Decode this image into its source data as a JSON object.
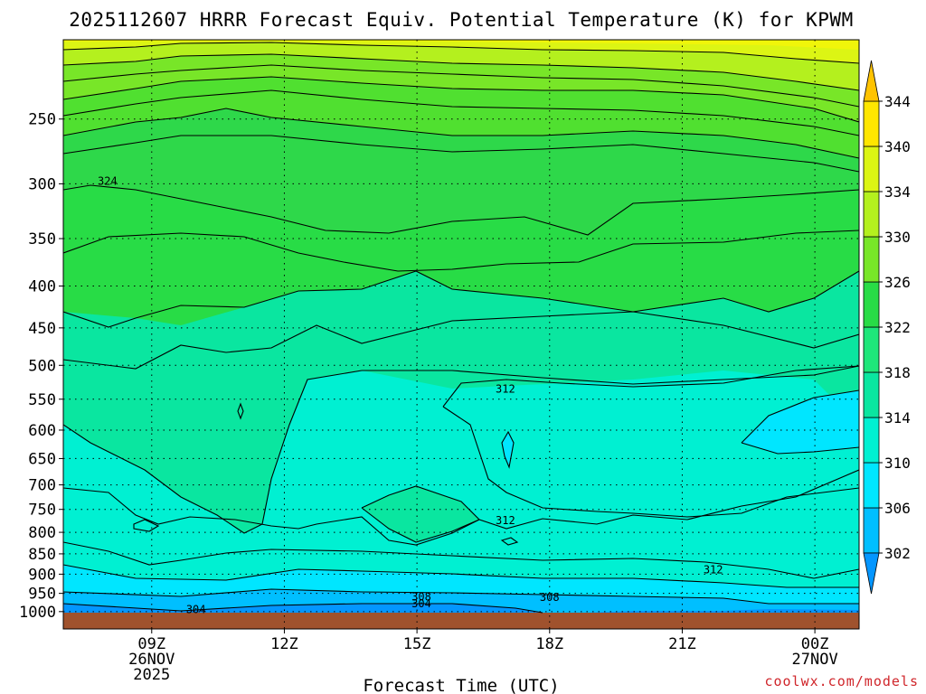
{
  "chart_data": {
    "type": "heatmap",
    "title": "2025112607 HRRR Forecast Equiv. Potential Temperature (K) for KPWM",
    "xlabel": "Forecast Time (UTC)",
    "ylabel": "",
    "credit": "coolwx.com/models",
    "x_ticks": [
      {
        "hour": 9,
        "lines": [
          "09Z",
          "26NOV",
          "2025"
        ]
      },
      {
        "hour": 12,
        "lines": [
          "12Z"
        ]
      },
      {
        "hour": 15,
        "lines": [
          "15Z"
        ]
      },
      {
        "hour": 18,
        "lines": [
          "18Z"
        ]
      },
      {
        "hour": 21,
        "lines": [
          "21Z"
        ]
      },
      {
        "hour": 24,
        "lines": [
          "00Z",
          "27NOV"
        ]
      }
    ],
    "xlim": [
      7,
      25
    ],
    "y_ticks": [
      250,
      300,
      350,
      400,
      450,
      500,
      550,
      600,
      650,
      700,
      750,
      800,
      850,
      900,
      950,
      1000
    ],
    "colorbar": {
      "labels": [
        302,
        306,
        310,
        314,
        318,
        322,
        326,
        330,
        334,
        340,
        344
      ],
      "colors": [
        "#0496ff",
        "#00bfff",
        "#00e6ff",
        "#00f0d2",
        "#0ae6a0",
        "#1ee67a",
        "#28dc46",
        "#78e628",
        "#b4f01e",
        "#dcf514",
        "#ffe600",
        "#ffc300"
      ]
    },
    "contour_labels": [
      {
        "text": "324",
        "hour": 8.0,
        "level": 297
      },
      {
        "text": "312",
        "hour": 17.0,
        "level": 533
      },
      {
        "text": "312",
        "hour": 17.0,
        "level": 772
      },
      {
        "text": "312",
        "hour": 21.7,
        "level": 887
      },
      {
        "text": "308",
        "hour": 15.1,
        "level": 957
      },
      {
        "text": "308",
        "hour": 18.0,
        "level": 958
      },
      {
        "text": "304",
        "hour": 15.1,
        "level": 975
      },
      {
        "text": "304",
        "hour": 10.0,
        "level": 992
      }
    ]
  }
}
